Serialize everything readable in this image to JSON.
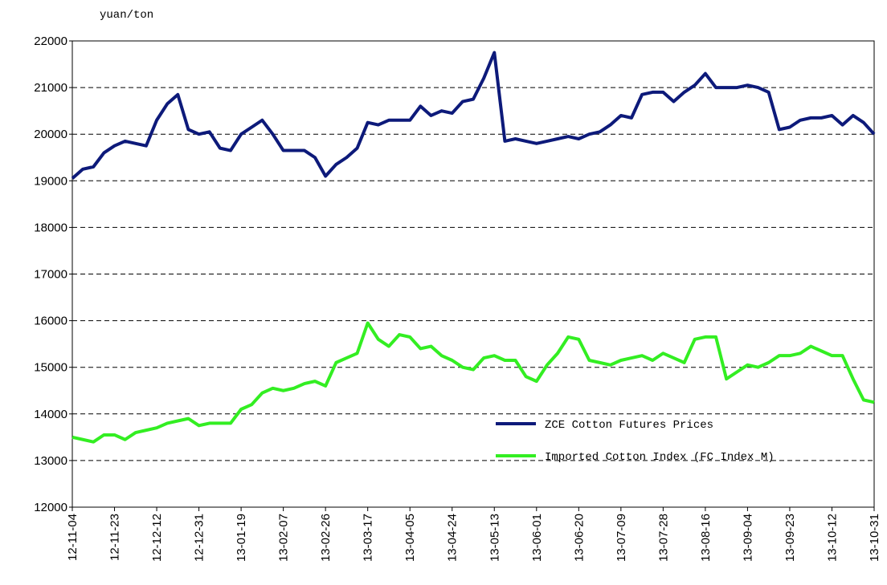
{
  "chart_data": {
    "type": "line",
    "y_label": "yuan/ton",
    "categories": [
      "12-11-04",
      null,
      null,
      null,
      "12-11-23",
      null,
      null,
      null,
      "12-12-12",
      null,
      null,
      null,
      "12-12-31",
      null,
      null,
      null,
      "13-01-19",
      null,
      null,
      null,
      "13-02-07",
      null,
      null,
      null,
      "13-02-26",
      null,
      null,
      null,
      "13-03-17",
      null,
      null,
      null,
      "13-04-05",
      null,
      null,
      null,
      "13-04-24",
      null,
      null,
      null,
      "13-05-13",
      null,
      null,
      null,
      "13-06-01",
      null,
      null,
      null,
      "13-06-20",
      null,
      null,
      null,
      "13-07-09",
      null,
      null,
      null,
      "13-07-28",
      null,
      null,
      null,
      "13-08-16",
      null,
      null,
      null,
      "13-09-04",
      null,
      null,
      null,
      "13-09-23",
      null,
      null,
      null,
      "13-10-12",
      null,
      null,
      null,
      "13-10-31"
    ],
    "series": [
      {
        "name": "ZCE Cotton Futures Prices",
        "color": "#0d1a7a",
        "values": [
          19050,
          19250,
          19300,
          19600,
          19750,
          19850,
          19800,
          19750,
          20300,
          20650,
          20850,
          20100,
          20000,
          20050,
          19700,
          19650,
          20000,
          20150,
          20300,
          20000,
          19650,
          19650,
          19650,
          19500,
          19100,
          19350,
          19500,
          19700,
          20250,
          20200,
          20300,
          20300,
          20300,
          20600,
          20400,
          20500,
          20450,
          20700,
          20750,
          21200,
          21750,
          19850,
          19900,
          19850,
          19800,
          19850,
          19900,
          19950,
          19900,
          20000,
          20050,
          20200,
          20400,
          20350,
          20850,
          20900,
          20900,
          20700,
          20900,
          21050,
          21300,
          21000,
          21000,
          21000,
          21050,
          21000,
          20900,
          20100,
          20150,
          20300,
          20350,
          20350,
          20400,
          20200,
          20400,
          20250,
          20000
        ]
      },
      {
        "name": "Imported Cotton Index (FC Index M)",
        "color": "#33ee22",
        "values": [
          13500,
          13450,
          13400,
          13550,
          13550,
          13450,
          13600,
          13650,
          13700,
          13800,
          13850,
          13900,
          13750,
          13800,
          13800,
          13800,
          14100,
          14200,
          14450,
          14550,
          14500,
          14550,
          14650,
          14700,
          14600,
          15100,
          15200,
          15300,
          15950,
          15600,
          15450,
          15700,
          15650,
          15400,
          15450,
          15250,
          15150,
          15000,
          14950,
          15200,
          15250,
          15150,
          15150,
          14800,
          14700,
          15050,
          15300,
          15650,
          15600,
          15150,
          15100,
          15050,
          15150,
          15200,
          15250,
          15150,
          15300,
          15200,
          15100,
          15600,
          15650,
          15650,
          14750,
          14900,
          15050,
          15000,
          15100,
          15250,
          15250,
          15300,
          15450,
          15350,
          15250,
          15250,
          14750,
          14300,
          14250
        ]
      }
    ],
    "ylim": [
      12000,
      22000
    ],
    "yticks": [
      12000,
      13000,
      14000,
      15000,
      16000,
      17000,
      18000,
      19000,
      20000,
      21000,
      22000
    ],
    "grid": true,
    "legend": "lower right"
  }
}
